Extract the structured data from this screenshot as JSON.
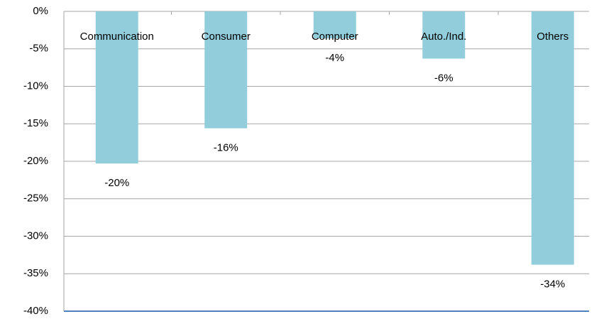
{
  "chart_data": {
    "type": "bar",
    "categories": [
      "Communication",
      "Consumer",
      "Computer",
      "Auto./Ind.",
      "Others"
    ],
    "values": [
      -20.3,
      -15.6,
      -3.6,
      -6.3,
      -33.8
    ],
    "value_labels": [
      "-20%",
      "-16%",
      "-4%",
      "-6%",
      "-34%"
    ],
    "color": "#92cddc",
    "ylim": [
      -40,
      0
    ],
    "yticks": [
      {
        "value": 0,
        "label": "0%"
      },
      {
        "value": -5,
        "label": "-5%"
      },
      {
        "value": -10,
        "label": "-10%"
      },
      {
        "value": -15,
        "label": "-15%"
      },
      {
        "value": -20,
        "label": "-20%"
      },
      {
        "value": -25,
        "label": "-25%"
      },
      {
        "value": -30,
        "label": "-30%"
      },
      {
        "value": -35,
        "label": "-35%"
      },
      {
        "value": -40,
        "label": "-40%"
      }
    ],
    "grid": true
  }
}
